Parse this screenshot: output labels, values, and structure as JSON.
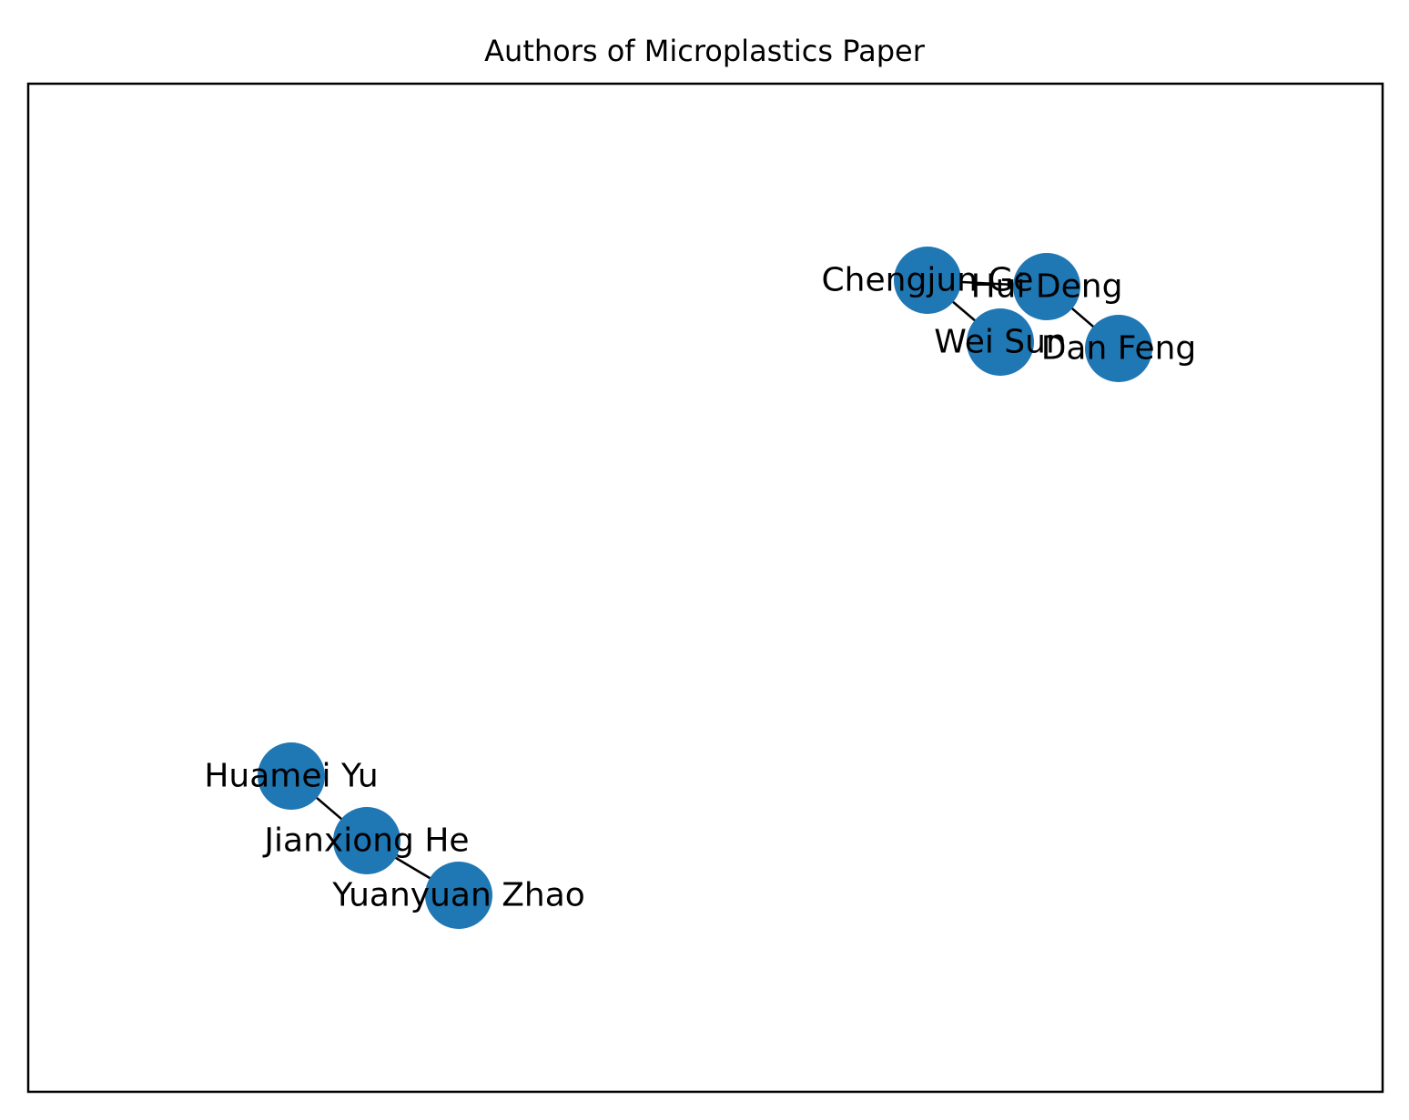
{
  "title": "Authors of Microplastics Paper",
  "node_color": "#1f77b4",
  "edge_color": "#000000",
  "nodes": [
    {
      "id": "chengjun-ge",
      "label": "Chengjun Ge"
    },
    {
      "id": "hui-deng",
      "label": "Hui Deng"
    },
    {
      "id": "wei-sun",
      "label": "Wei Sun"
    },
    {
      "id": "dan-feng",
      "label": "Dan Feng"
    },
    {
      "id": "huamei-yu",
      "label": "Huamei Yu"
    },
    {
      "id": "jianxiong-he",
      "label": "Jianxiong He"
    },
    {
      "id": "yuanyuan-zhao",
      "label": "Yuanyuan Zhao"
    }
  ],
  "edges": [
    {
      "source": "chengjun-ge",
      "target": "hui-deng"
    },
    {
      "source": "chengjun-ge",
      "target": "wei-sun"
    },
    {
      "source": "hui-deng",
      "target": "dan-feng"
    },
    {
      "source": "huamei-yu",
      "target": "jianxiong-he"
    },
    {
      "source": "jianxiong-he",
      "target": "yuanyuan-zhao"
    }
  ]
}
